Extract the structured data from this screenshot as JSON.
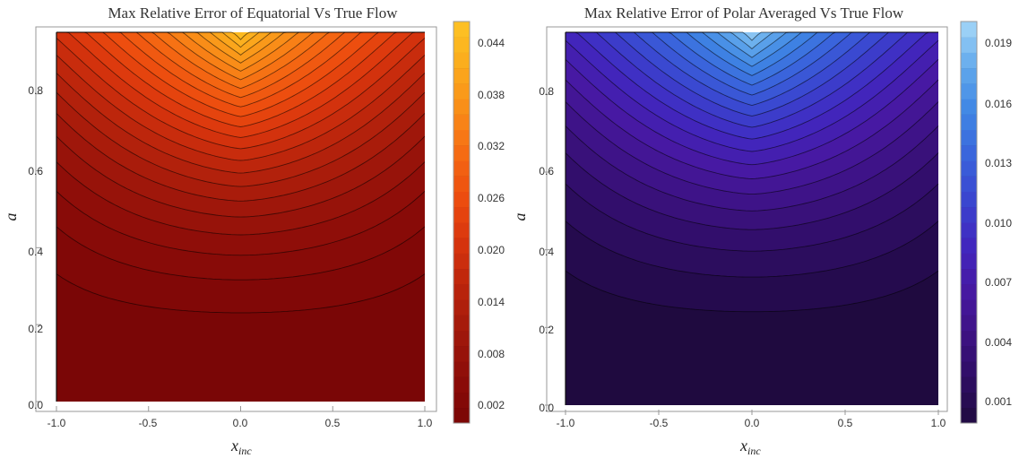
{
  "chart_data": [
    {
      "type": "heatmap",
      "title": "Max Relative Error of Equatorial Vs True Flow",
      "xlabel": "x",
      "xlabel_sub": "inc",
      "ylabel": "a",
      "xlim": [
        -1.0,
        1.0
      ],
      "ylim": [
        0.0,
        0.96
      ],
      "x_ticks": [
        "-1.0",
        "-0.5",
        "0.0",
        "0.5",
        "1.0"
      ],
      "y_ticks": [
        "0.0",
        "0.2",
        "0.4",
        "0.6",
        "0.8"
      ],
      "colorbar": {
        "range": [
          0.0,
          0.0455
        ],
        "ticks": [
          "0.002",
          "0.008",
          "0.014",
          "0.020",
          "0.026",
          "0.032",
          "0.038",
          "0.044"
        ],
        "colors": [
          "#7a0606",
          "#8c0c08",
          "#a0180b",
          "#b9240c",
          "#d6330d",
          "#ec4b0f",
          "#f56913",
          "#f98c18",
          "#fbab1d",
          "#fec324"
        ]
      },
      "contour_count": 22,
      "max_value": 0.0455,
      "min_value": 0.0
    },
    {
      "type": "heatmap",
      "title": "Max Relative Error of Polar Averaged Vs True Flow",
      "xlabel": "x",
      "xlabel_sub": "inc",
      "ylabel": "a",
      "xlim": [
        -1.0,
        1.0
      ],
      "ylim": [
        0.0,
        0.96
      ],
      "x_ticks": [
        "-1.0",
        "-0.5",
        "0.0",
        "0.5",
        "1.0"
      ],
      "y_ticks": [
        "0.0",
        "0.2",
        "0.4",
        "0.6",
        "0.8"
      ],
      "colorbar": {
        "range": [
          0.0,
          0.0202
        ],
        "ticks": [
          "0.001",
          "0.004",
          "0.007",
          "0.010",
          "0.013",
          "0.016",
          "0.019"
        ],
        "colors": [
          "#1f0a3f",
          "#2e0d63",
          "#3d1283",
          "#4719a3",
          "#4127bf",
          "#3a45cf",
          "#3a64dc",
          "#3f86e4",
          "#63aaec",
          "#a6d8f8"
        ]
      },
      "contour_count": 20,
      "max_value": 0.0202,
      "min_value": 0.0
    }
  ]
}
